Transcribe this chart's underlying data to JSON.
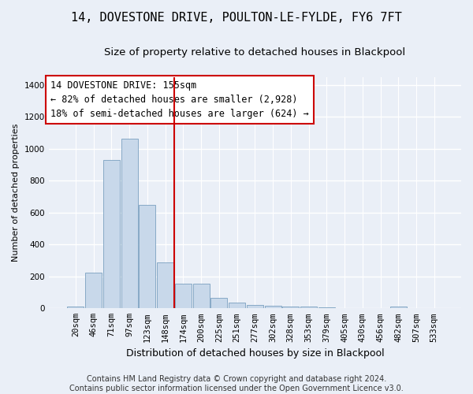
{
  "title": "14, DOVESTONE DRIVE, POULTON-LE-FYLDE, FY6 7FT",
  "subtitle": "Size of property relative to detached houses in Blackpool",
  "xlabel": "Distribution of detached houses by size in Blackpool",
  "ylabel": "Number of detached properties",
  "bar_color": "#c8d8ea",
  "bar_edge_color": "#7aa0c0",
  "categories": [
    "20sqm",
    "46sqm",
    "71sqm",
    "97sqm",
    "123sqm",
    "148sqm",
    "174sqm",
    "200sqm",
    "225sqm",
    "251sqm",
    "277sqm",
    "302sqm",
    "328sqm",
    "353sqm",
    "379sqm",
    "405sqm",
    "430sqm",
    "456sqm",
    "482sqm",
    "507sqm",
    "533sqm"
  ],
  "values": [
    12,
    225,
    930,
    1065,
    650,
    290,
    155,
    155,
    65,
    35,
    20,
    18,
    12,
    10,
    7,
    0,
    0,
    0,
    12,
    0,
    0
  ],
  "ylim": [
    0,
    1450
  ],
  "yticks": [
    0,
    200,
    400,
    600,
    800,
    1000,
    1200,
    1400
  ],
  "property_line_label": "14 DOVESTONE DRIVE: 155sqm",
  "annotation_line1": "← 82% of detached houses are smaller (2,928)",
  "annotation_line2": "18% of semi-detached houses are larger (624) →",
  "footnote1": "Contains HM Land Registry data © Crown copyright and database right 2024.",
  "footnote2": "Contains public sector information licensed under the Open Government Licence v3.0.",
  "bg_color": "#eaeff7",
  "plot_bg_color": "#eaeff7",
  "grid_color": "#ffffff",
  "title_fontsize": 11,
  "subtitle_fontsize": 9.5,
  "xlabel_fontsize": 9,
  "ylabel_fontsize": 8,
  "tick_fontsize": 7.5,
  "annotation_fontsize": 8.5,
  "footnote_fontsize": 7
}
